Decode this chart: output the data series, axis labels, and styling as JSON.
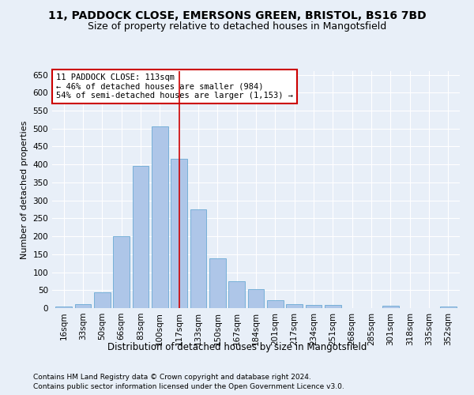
{
  "title1": "11, PADDOCK CLOSE, EMERSONS GREEN, BRISTOL, BS16 7BD",
  "title2": "Size of property relative to detached houses in Mangotsfield",
  "xlabel": "Distribution of detached houses by size in Mangotsfield",
  "ylabel": "Number of detached properties",
  "categories": [
    "16sqm",
    "33sqm",
    "50sqm",
    "66sqm",
    "83sqm",
    "100sqm",
    "117sqm",
    "133sqm",
    "150sqm",
    "167sqm",
    "184sqm",
    "201sqm",
    "217sqm",
    "234sqm",
    "251sqm",
    "268sqm",
    "285sqm",
    "301sqm",
    "318sqm",
    "335sqm",
    "352sqm"
  ],
  "values": [
    5,
    10,
    45,
    200,
    397,
    507,
    415,
    275,
    138,
    75,
    52,
    22,
    12,
    8,
    8,
    0,
    0,
    6,
    0,
    0,
    4
  ],
  "bar_color": "#aec6e8",
  "bar_edge_color": "#6aaad4",
  "vline_x": 6,
  "vline_color": "#cc0000",
  "annotation_line1": "11 PADDOCK CLOSE: 113sqm",
  "annotation_line2": "← 46% of detached houses are smaller (984)",
  "annotation_line3": "54% of semi-detached houses are larger (1,153) →",
  "annotation_box_color": "#ffffff",
  "annotation_box_edge": "#cc0000",
  "ylim": [
    0,
    660
  ],
  "yticks": [
    0,
    50,
    100,
    150,
    200,
    250,
    300,
    350,
    400,
    450,
    500,
    550,
    600,
    650
  ],
  "background_color": "#e8eff8",
  "grid_color": "#ffffff",
  "footer1": "Contains HM Land Registry data © Crown copyright and database right 2024.",
  "footer2": "Contains public sector information licensed under the Open Government Licence v3.0.",
  "title1_fontsize": 10,
  "title2_fontsize": 9,
  "xlabel_fontsize": 8.5,
  "ylabel_fontsize": 8,
  "tick_fontsize": 7.5,
  "annotation_fontsize": 7.5,
  "footer_fontsize": 6.5
}
